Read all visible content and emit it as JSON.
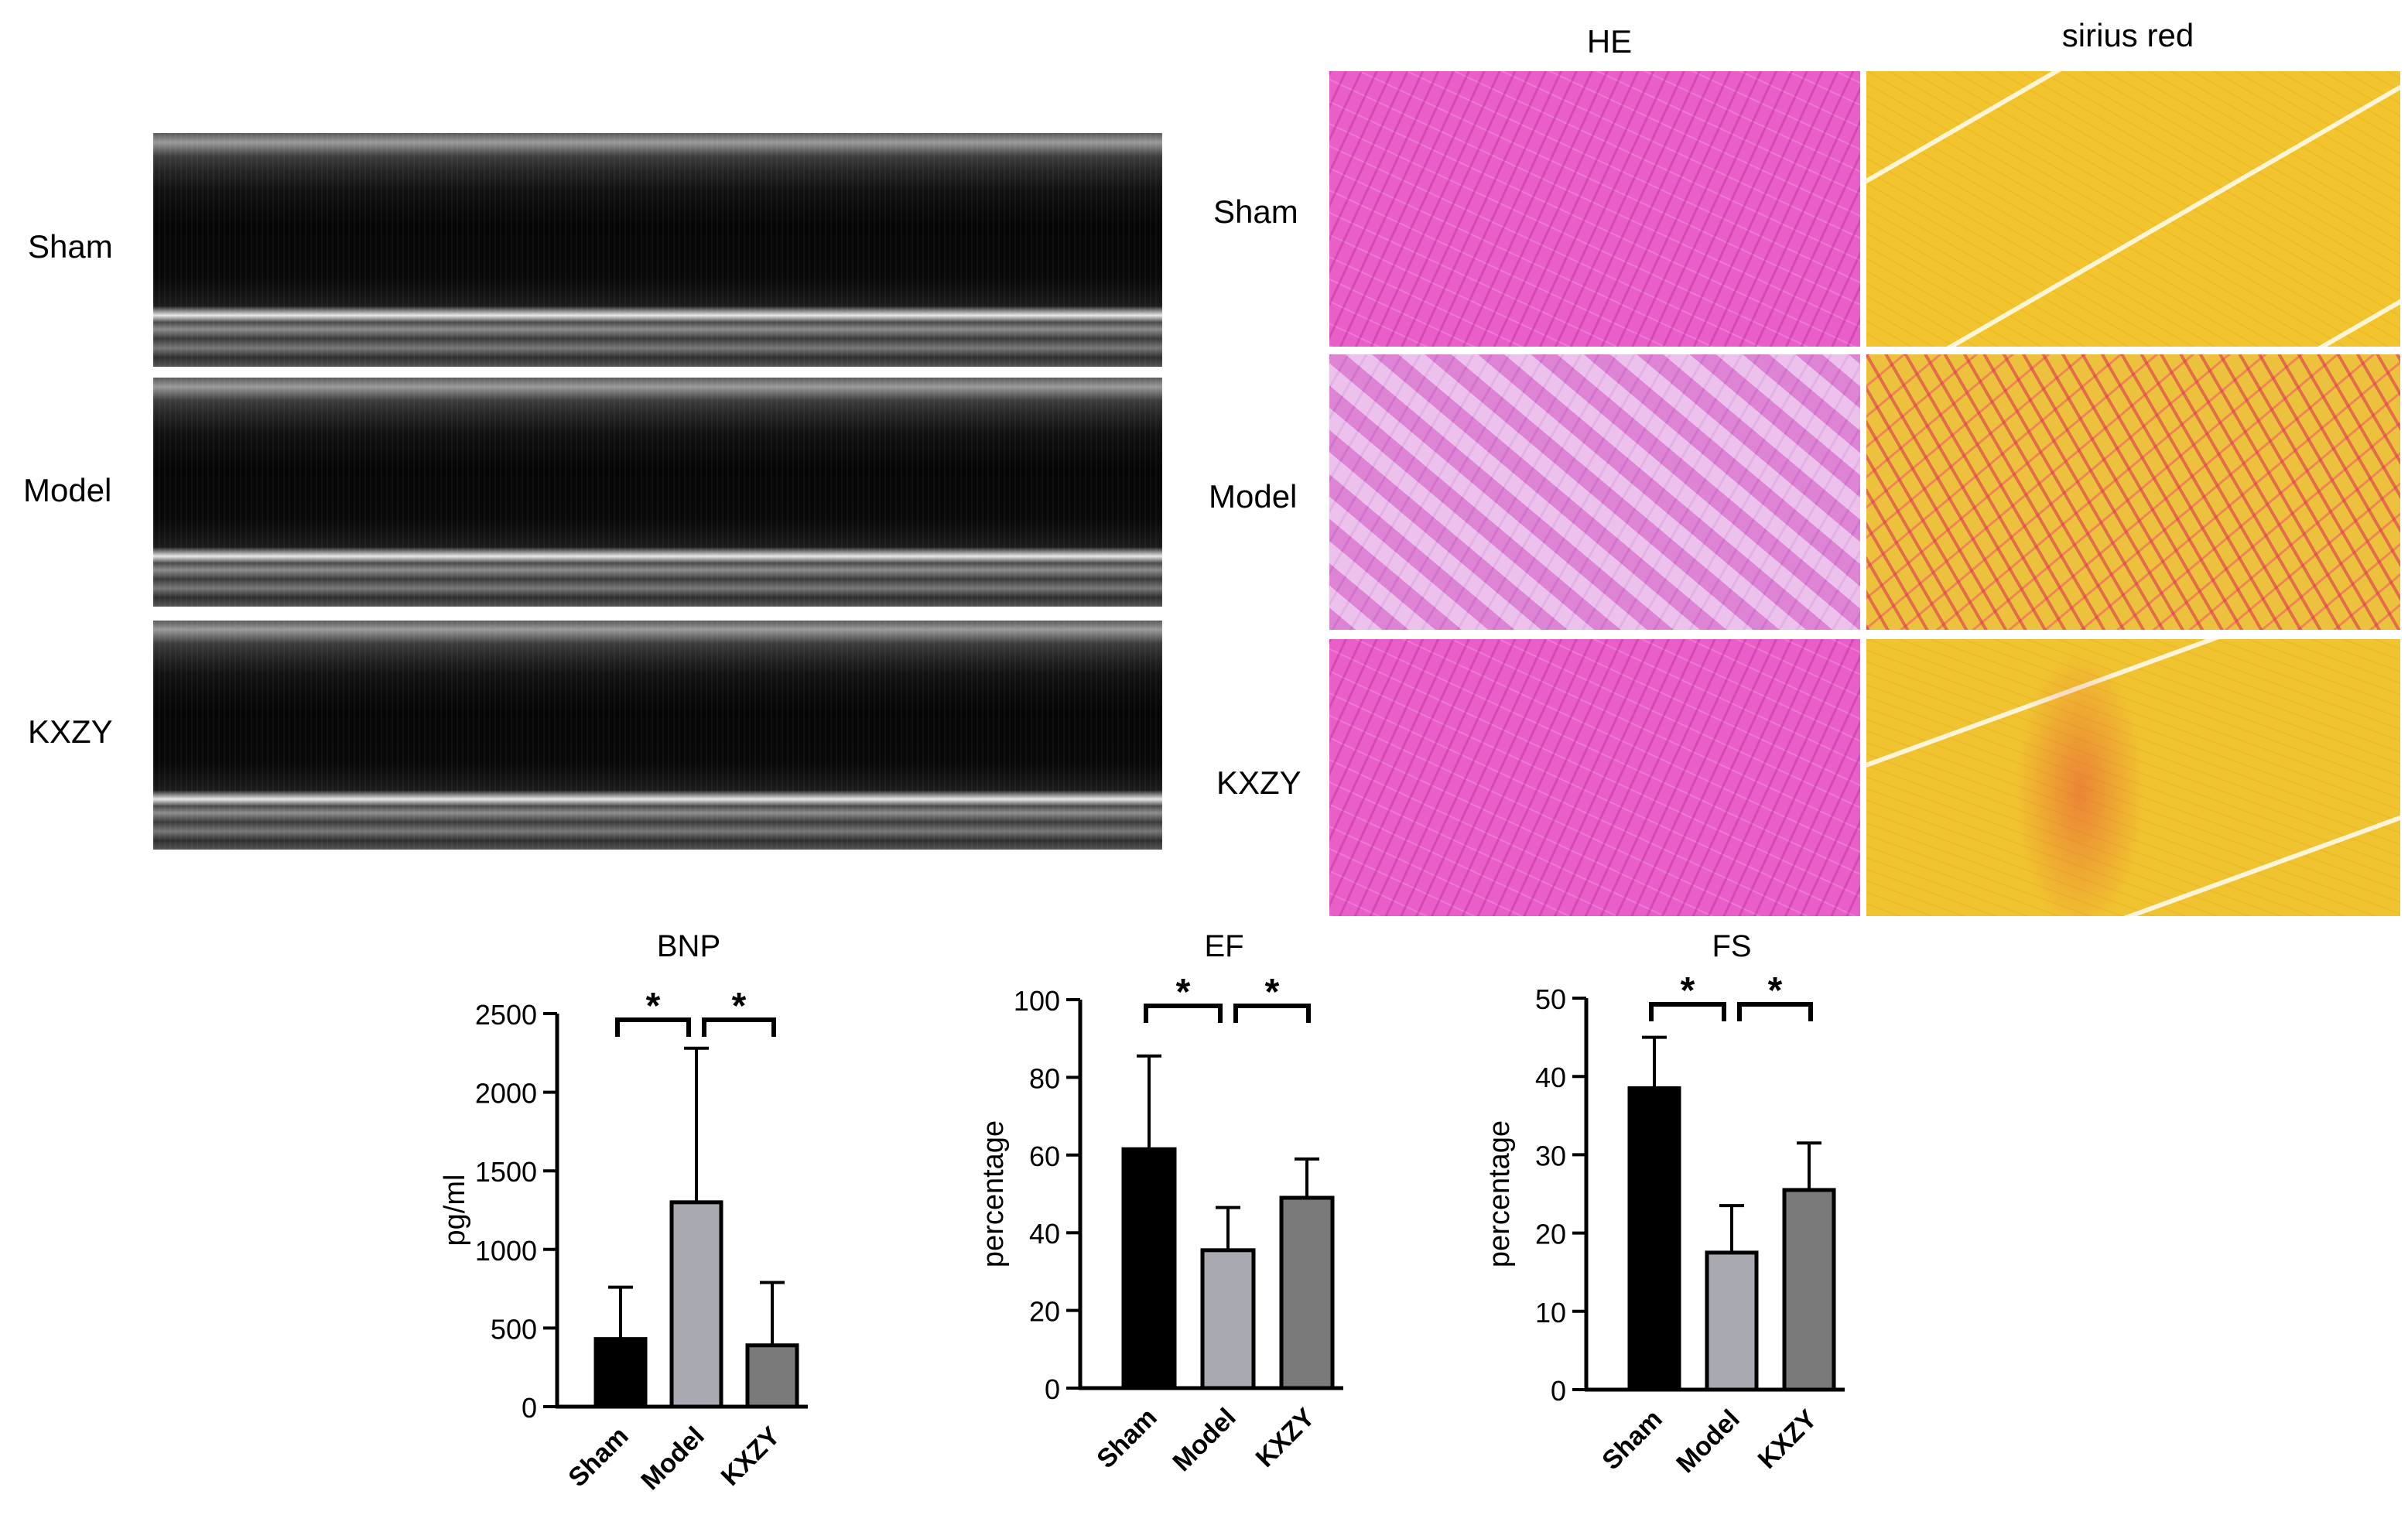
{
  "echo": {
    "rows": [
      "Sham",
      "Model",
      "KXZY"
    ]
  },
  "histology": {
    "columns": [
      "HE",
      "sirius red"
    ],
    "rows": [
      "Sham",
      "Model",
      "KXZY"
    ]
  },
  "chart_data": [
    {
      "type": "bar",
      "title": "BNP",
      "ylabel": "pg/ml",
      "categories": [
        "Sham",
        "Model",
        "KXZY"
      ],
      "values": [
        430,
        1300,
        390
      ],
      "errors": [
        330,
        980,
        400
      ],
      "ylim": [
        0,
        2500
      ],
      "yticks": [
        0,
        500,
        1000,
        1500,
        2000,
        2500
      ],
      "colors": [
        "#000000",
        "#a9a9b1",
        "#7a7a7a"
      ],
      "significance": [
        {
          "from": 0,
          "to": 1,
          "label": "*"
        },
        {
          "from": 1,
          "to": 2,
          "label": "*"
        }
      ]
    },
    {
      "type": "bar",
      "title": "EF",
      "ylabel": "percentage",
      "categories": [
        "Sham",
        "Model",
        "KXZY"
      ],
      "values": [
        61.5,
        35.5,
        49
      ],
      "errors": [
        24,
        11,
        10
      ],
      "ylim": [
        0,
        100
      ],
      "yticks": [
        0,
        20,
        40,
        60,
        80,
        100
      ],
      "colors": [
        "#000000",
        "#a9a9b1",
        "#7a7a7a"
      ],
      "significance": [
        {
          "from": 0,
          "to": 1,
          "label": "*"
        },
        {
          "from": 1,
          "to": 2,
          "label": "*"
        }
      ]
    },
    {
      "type": "bar",
      "title": "FS",
      "ylabel": "percentage",
      "categories": [
        "Sham",
        "Model",
        "KXZY"
      ],
      "values": [
        38.5,
        17.5,
        25.5
      ],
      "errors": [
        6.5,
        6,
        6
      ],
      "ylim": [
        0,
        50
      ],
      "yticks": [
        0,
        10,
        20,
        30,
        40,
        50
      ],
      "colors": [
        "#000000",
        "#a9a9b1",
        "#7a7a7a"
      ],
      "significance": [
        {
          "from": 0,
          "to": 1,
          "label": "*"
        },
        {
          "from": 1,
          "to": 2,
          "label": "*"
        }
      ]
    }
  ]
}
